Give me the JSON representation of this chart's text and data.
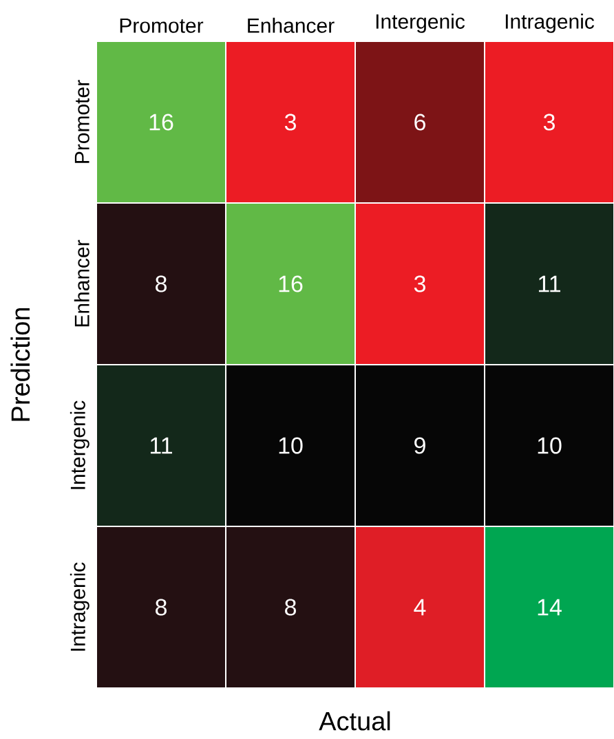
{
  "chart_data": {
    "type": "heatmap",
    "xlabel": "Actual",
    "ylabel": "Prediction",
    "categories": [
      "Promoter",
      "Enhancer",
      "Intergenic",
      "Intragenic"
    ],
    "y_categories": [
      "Promoter",
      "Enhancer",
      "Intergenic",
      "Intragenic"
    ],
    "cells": [
      [
        16,
        3,
        6,
        3
      ],
      [
        8,
        16,
        3,
        11
      ],
      [
        11,
        10,
        9,
        10
      ],
      [
        8,
        8,
        4,
        14
      ]
    ],
    "colors": [
      [
        "#61b946",
        "#ec1c24",
        "#7d1416",
        "#ec1c24"
      ],
      [
        "#241012",
        "#61b946",
        "#ec1c24",
        "#13281a"
      ],
      [
        "#13281a",
        "#060606",
        "#060606",
        "#060606"
      ],
      [
        "#241012",
        "#241012",
        "#df1e26",
        "#00a651"
      ]
    ],
    "data_labels": true
  }
}
